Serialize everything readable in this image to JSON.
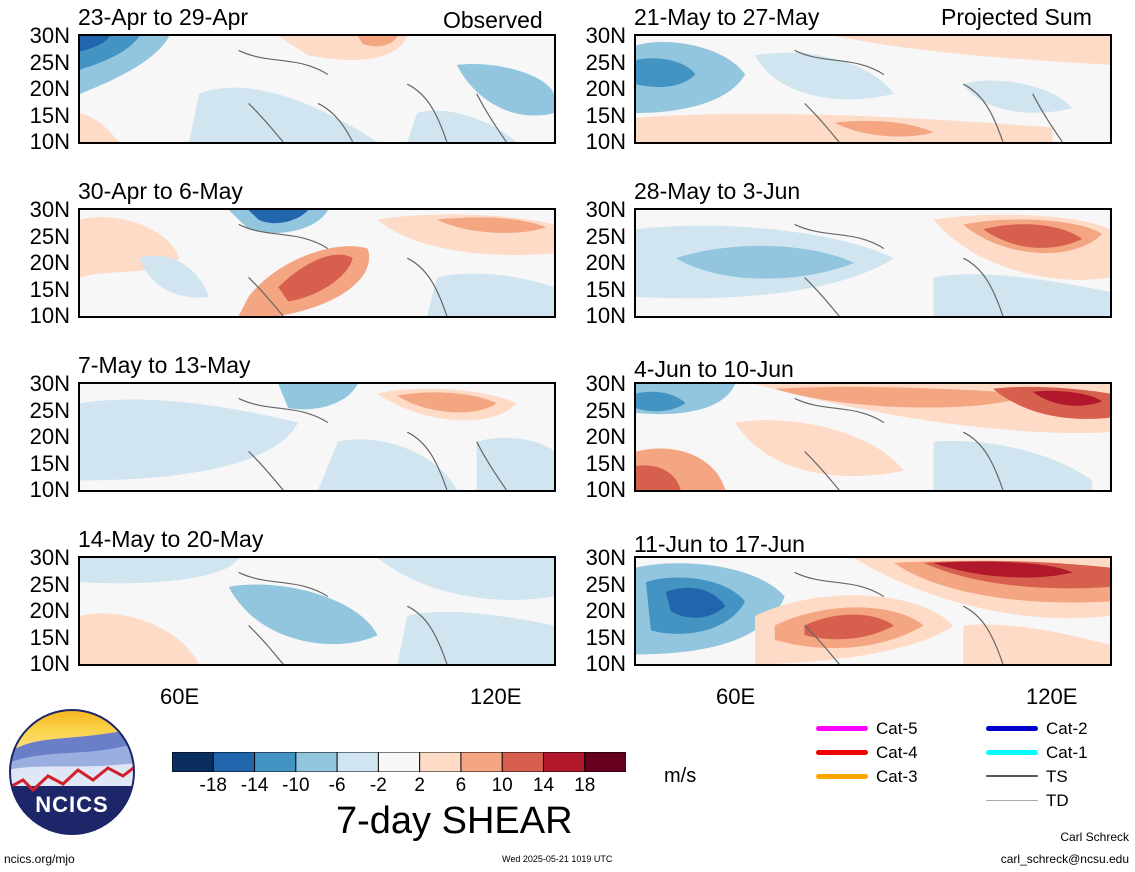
{
  "left_column_header": "Observed",
  "right_column_header": "Projected Sum",
  "panels_left": [
    {
      "title": "23-Apr to 29-Apr"
    },
    {
      "title": "30-Apr to 6-May"
    },
    {
      "title": "7-May to 13-May"
    },
    {
      "title": "14-May to 20-May"
    }
  ],
  "panels_right": [
    {
      "title": "21-May to 27-May"
    },
    {
      "title": "28-May to 3-Jun"
    },
    {
      "title": "4-Jun to 10-Jun"
    },
    {
      "title": "11-Jun to 17-Jun"
    }
  ],
  "lat_labels": [
    "30N",
    "25N",
    "20N",
    "15N",
    "10N"
  ],
  "lon_labels": [
    "60E",
    "120E"
  ],
  "colorbar": {
    "colors": [
      "#0a2f5e",
      "#2166ac",
      "#4393c3",
      "#92c5de",
      "#d1e5f0",
      "#f7f7f7",
      "#fddbc7",
      "#f4a582",
      "#d6604d",
      "#b2182b",
      "#67001f"
    ],
    "tick_labels": [
      "-18",
      "-14",
      "-10",
      "-6",
      "-2",
      "2",
      "6",
      "10",
      "14",
      "18"
    ],
    "units": "m/s"
  },
  "main_title": "7-day SHEAR",
  "logo_text": "NCICS",
  "legend": [
    {
      "label": "Cat-5",
      "color": "#ff00ff"
    },
    {
      "label": "Cat-4",
      "color": "#ee0000"
    },
    {
      "label": "Cat-3",
      "color": "#ffa500"
    },
    {
      "label": "Cat-2",
      "color": "#0000cc"
    },
    {
      "label": "Cat-1",
      "color": "#00ffff"
    },
    {
      "label": "TS",
      "color": "#555555"
    },
    {
      "label": "TD",
      "color": "#aaaaaa"
    }
  ],
  "footer": {
    "website": "ncics.org/mjo",
    "timestamp": "Wed 2025-05-21 1019 UTC",
    "author": "Carl Schreck",
    "email": "carl_schreck@ncsu.edu"
  }
}
